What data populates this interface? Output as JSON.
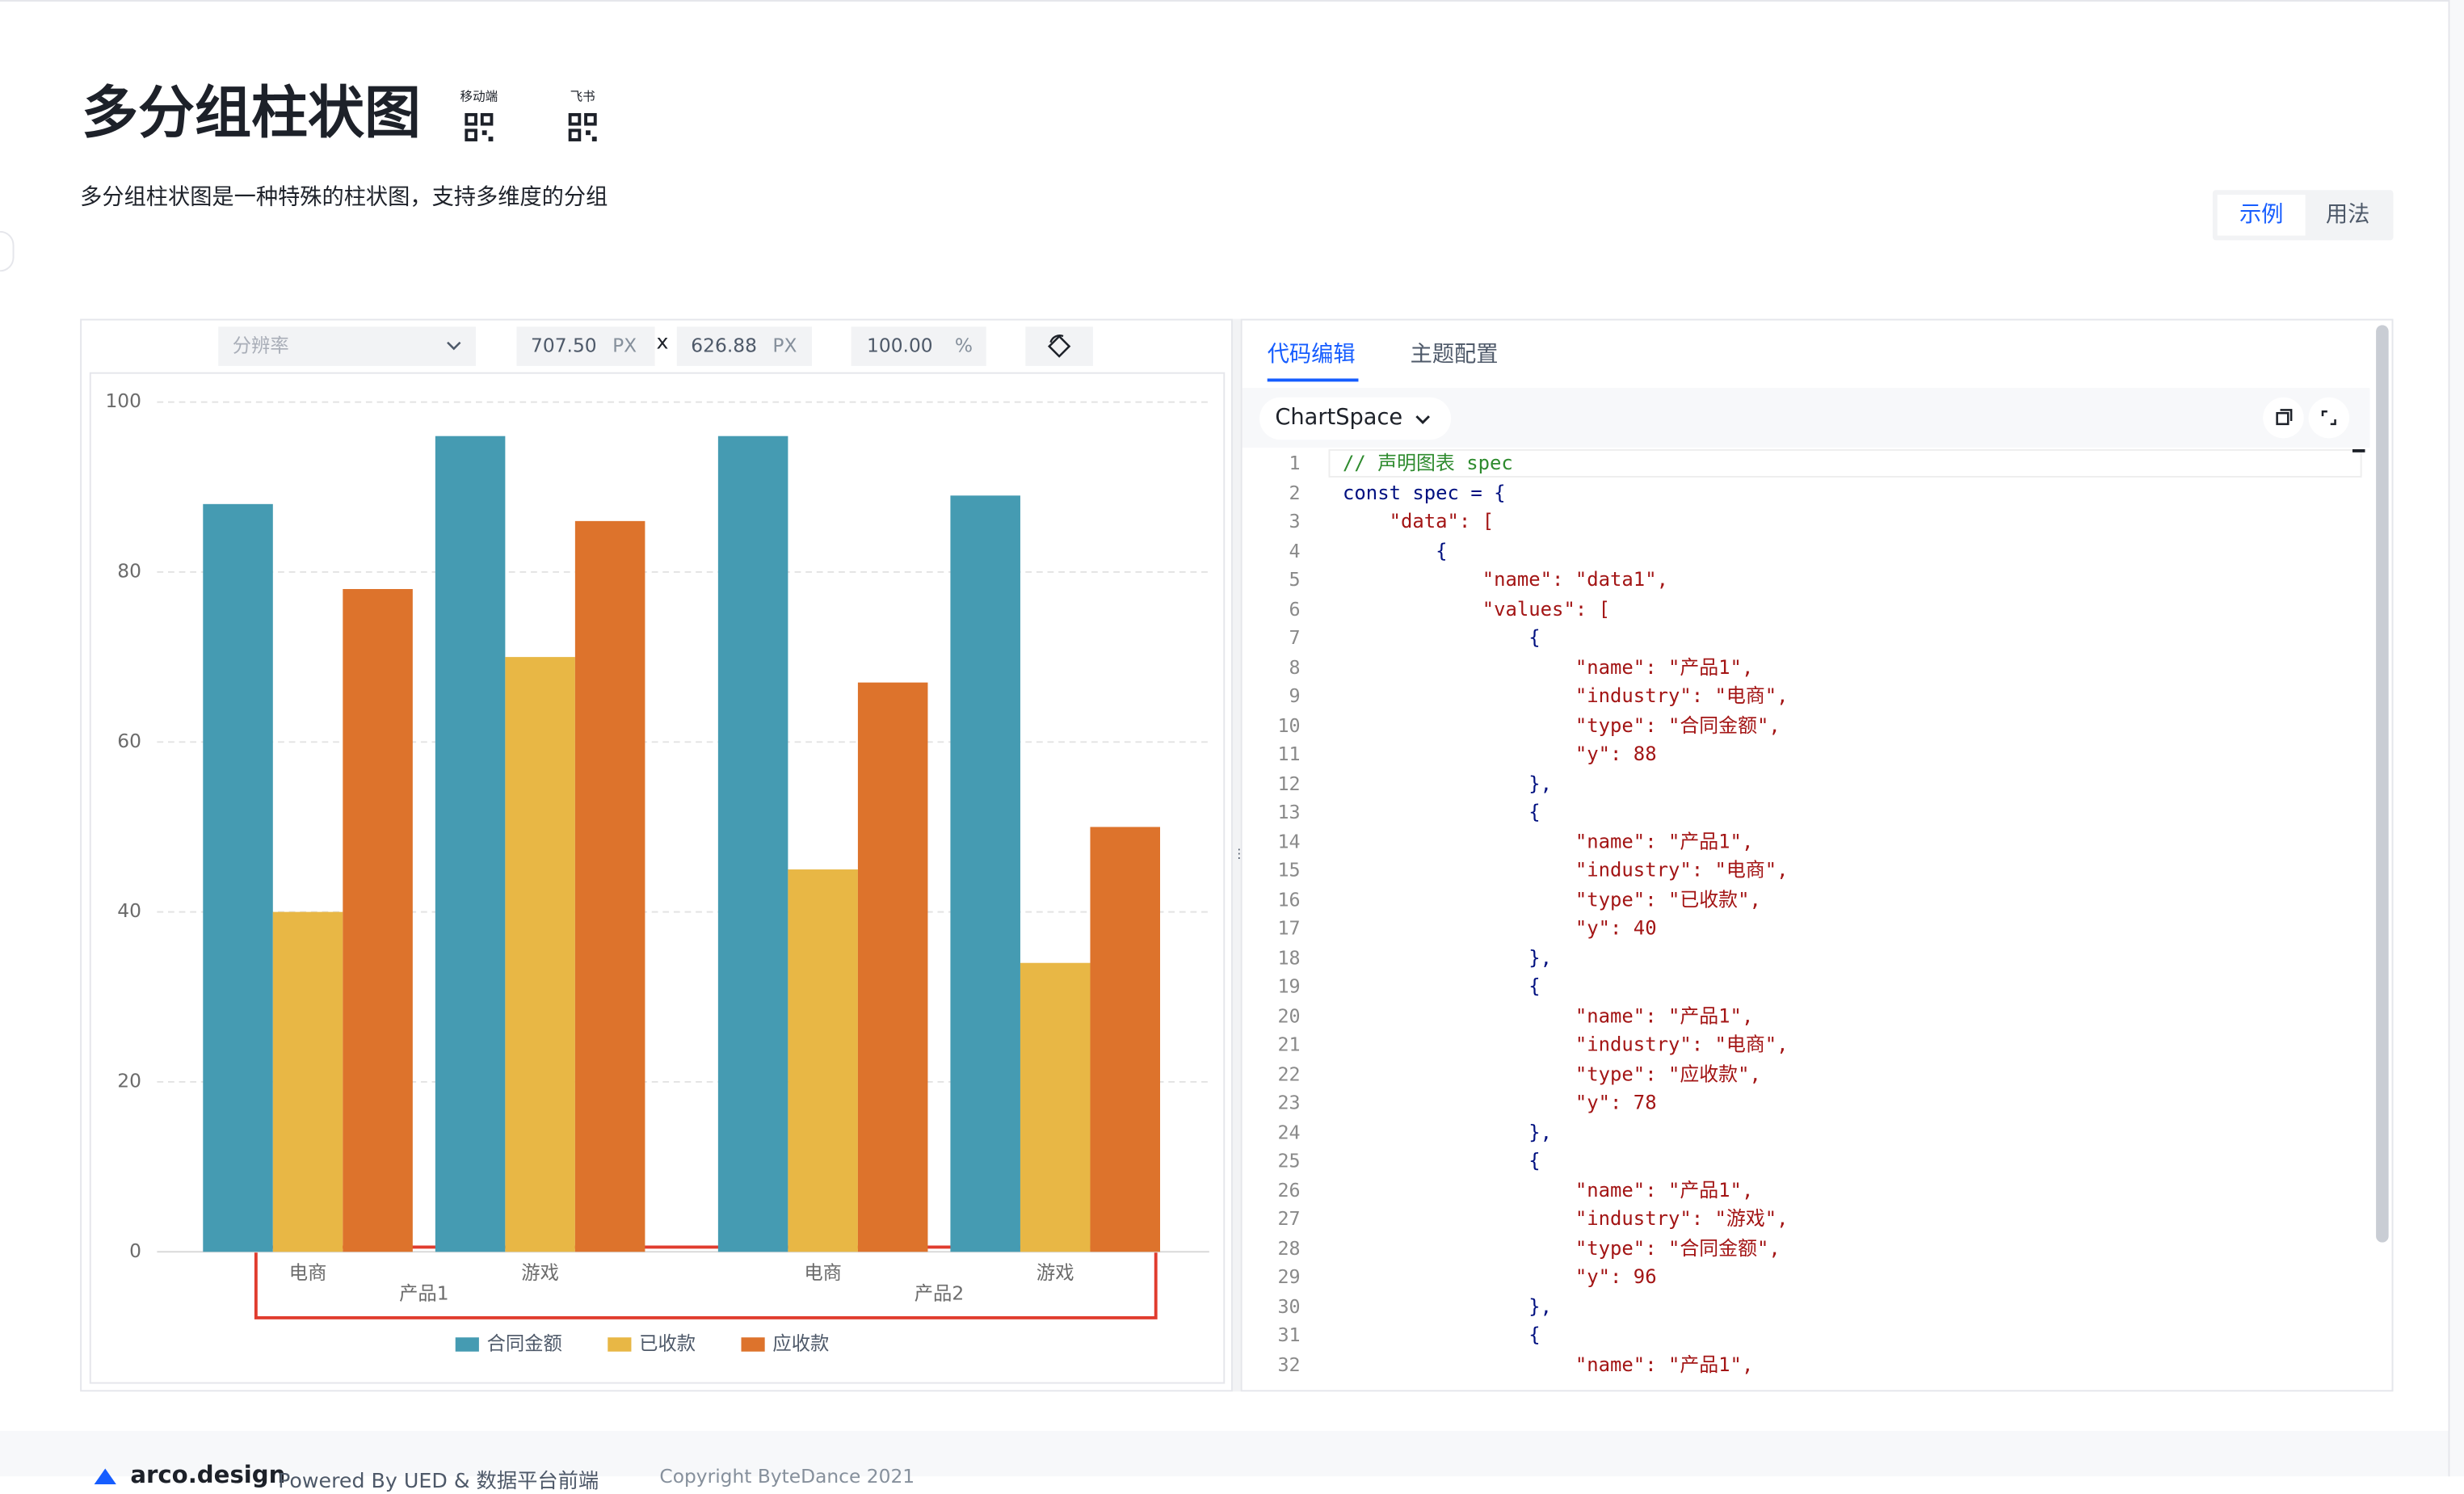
{
  "header": {
    "title": "多分组柱状图",
    "qr_labels": [
      "移动端",
      "飞书"
    ],
    "description": "多分组柱状图是一种特殊的柱状图，支持多维度的分组"
  },
  "view_tabs": [
    "示例",
    "用法"
  ],
  "toolbar": {
    "resolution": "分辨率",
    "width": "707.50",
    "width_unit": "PX",
    "times": "x",
    "height": "626.88",
    "height_unit": "PX",
    "zoom": "100.00",
    "zoom_unit": "%"
  },
  "chart_data": {
    "type": "bar",
    "groups": [
      "产品1",
      "产品2"
    ],
    "categories": [
      "电商",
      "游戏",
      "电商",
      "游戏"
    ],
    "series": [
      {
        "name": "合同金额",
        "color": "#459bb2",
        "values": [
          88,
          96,
          96,
          89
        ]
      },
      {
        "name": "已收款",
        "color": "#e8b745",
        "values": [
          40,
          70,
          45,
          34
        ]
      },
      {
        "name": "应收款",
        "color": "#dd732c",
        "values": [
          78,
          86,
          67,
          50
        ]
      }
    ],
    "ylim": [
      0,
      100
    ],
    "yticks": [
      0,
      20,
      40,
      60,
      80,
      100
    ],
    "grid": true,
    "legend": "bottom"
  },
  "editor": {
    "tabs": [
      "代码编辑",
      "主题配置"
    ],
    "selector": "ChartSpace",
    "line_numbers": [
      1,
      2,
      3,
      4,
      5,
      6,
      7,
      8,
      9,
      10,
      11,
      12,
      13,
      14,
      15,
      16,
      17,
      18,
      19,
      20,
      21,
      22,
      23,
      24,
      25,
      26,
      27,
      28,
      29,
      30,
      31,
      32
    ],
    "lines": [
      "// 声明图表 spec",
      "const spec = {",
      "    \"data\": [",
      "        {",
      "            \"name\": \"data1\",",
      "            \"values\": [",
      "                {",
      "                    \"name\": \"产品1\",",
      "                    \"industry\": \"电商\",",
      "                    \"type\": \"合同金额\",",
      "                    \"y\": 88",
      "                },",
      "                {",
      "                    \"name\": \"产品1\",",
      "                    \"industry\": \"电商\",",
      "                    \"type\": \"已收款\",",
      "                    \"y\": 40",
      "                },",
      "                {",
      "                    \"name\": \"产品1\",",
      "                    \"industry\": \"电商\",",
      "                    \"type\": \"应收款\",",
      "                    \"y\": 78",
      "                },",
      "                {",
      "                    \"name\": \"产品1\",",
      "                    \"industry\": \"游戏\",",
      "                    \"type\": \"合同金额\",",
      "                    \"y\": 96",
      "                },",
      "                {",
      "                    \"name\": \"产品1\","
    ]
  },
  "footer": {
    "brand": "arco.design",
    "credit": "Powered By UED & 数据平台前端",
    "copyright": "Copyright ByteDance 2021"
  }
}
